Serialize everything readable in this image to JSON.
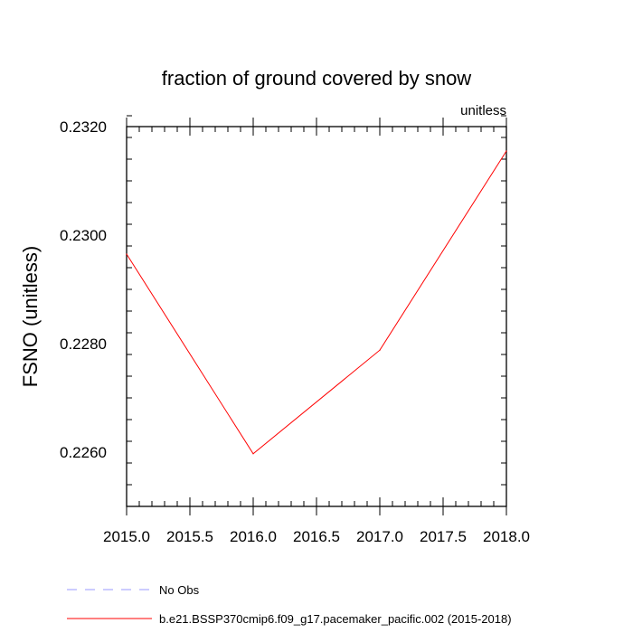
{
  "chart_data": {
    "type": "line",
    "title": "fraction of ground covered by snow",
    "subtitle_right": "unitless",
    "xlabel": "",
    "ylabel": "FSNO  (unitless)",
    "xlim": [
      2015.0,
      2018.0
    ],
    "ylim": [
      0.225,
      0.232
    ],
    "x_ticks": [
      2015.0,
      2015.5,
      2016.0,
      2016.5,
      2017.0,
      2017.5,
      2018.0
    ],
    "x_tick_labels": [
      "2015.0",
      "2015.5",
      "2016.0",
      "2016.5",
      "2017.0",
      "2017.5",
      "2018.0"
    ],
    "y_ticks": [
      0.226,
      0.228,
      0.23,
      0.232
    ],
    "y_tick_labels": [
      "0.2260",
      "0.2280",
      "0.2300",
      "0.2320"
    ],
    "y_minor_step": 0.0004,
    "x_minor_step": 0.1,
    "grid": false,
    "series": [
      {
        "name": "b.e21.BSSP370cmip6.f09_g17.pacemaker_pacific.002 (2015-2018)",
        "color": "#ff0000",
        "dash": "solid",
        "x": [
          2015.0,
          2016.0,
          2017.0,
          2018.0
        ],
        "y": [
          0.22965,
          0.22597,
          0.22788,
          0.23155
        ]
      }
    ],
    "legend": {
      "placement": "bottom-left",
      "entries": [
        {
          "label": "No Obs",
          "color": "#9999ff",
          "dash": "dashed"
        },
        {
          "label": "b.e21.BSSP370cmip6.f09_g17.pacemaker_pacific.002 (2015-2018)",
          "color": "#ff0000",
          "dash": "solid"
        }
      ]
    }
  }
}
